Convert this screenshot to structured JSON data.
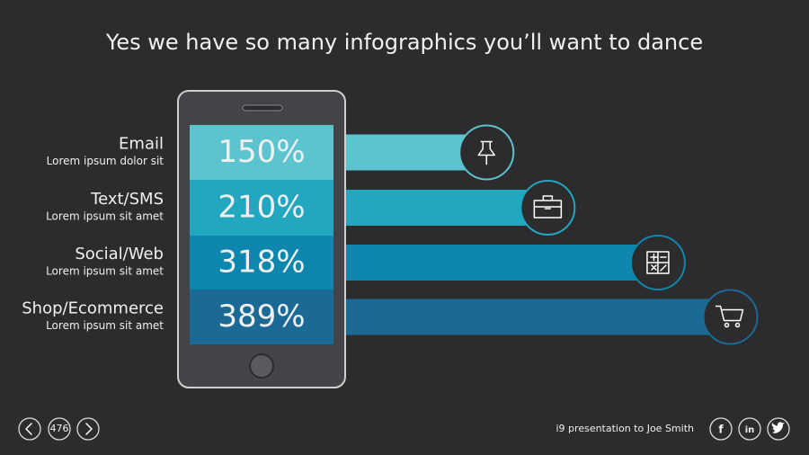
{
  "header": {
    "title": "Yes we have so many infographics you’ll want to dance"
  },
  "items": [
    {
      "title": "Email",
      "subtitle": "Lorem ipsum dolor sit",
      "value": 150,
      "value_label": "150%",
      "color": "#5bc4ce"
    },
    {
      "title": "Text/SMS",
      "subtitle": "Lorem ipsum sit amet",
      "value": 210,
      "value_label": "210%",
      "color": "#22a7c1"
    },
    {
      "title": "Social/Web",
      "subtitle": "Lorem ipsum sit amet",
      "value": 318,
      "value_label": "318%",
      "color": "#0d87ae"
    },
    {
      "title": "Shop/Ecommerce",
      "subtitle": "Lorem ipsum sit amet",
      "value": 389,
      "value_label": "389%",
      "color": "#1b6a96"
    }
  ],
  "footer": {
    "page": "476",
    "credit": "i9 presentation to Joe Smith",
    "social": [
      "f",
      "in"
    ]
  }
}
